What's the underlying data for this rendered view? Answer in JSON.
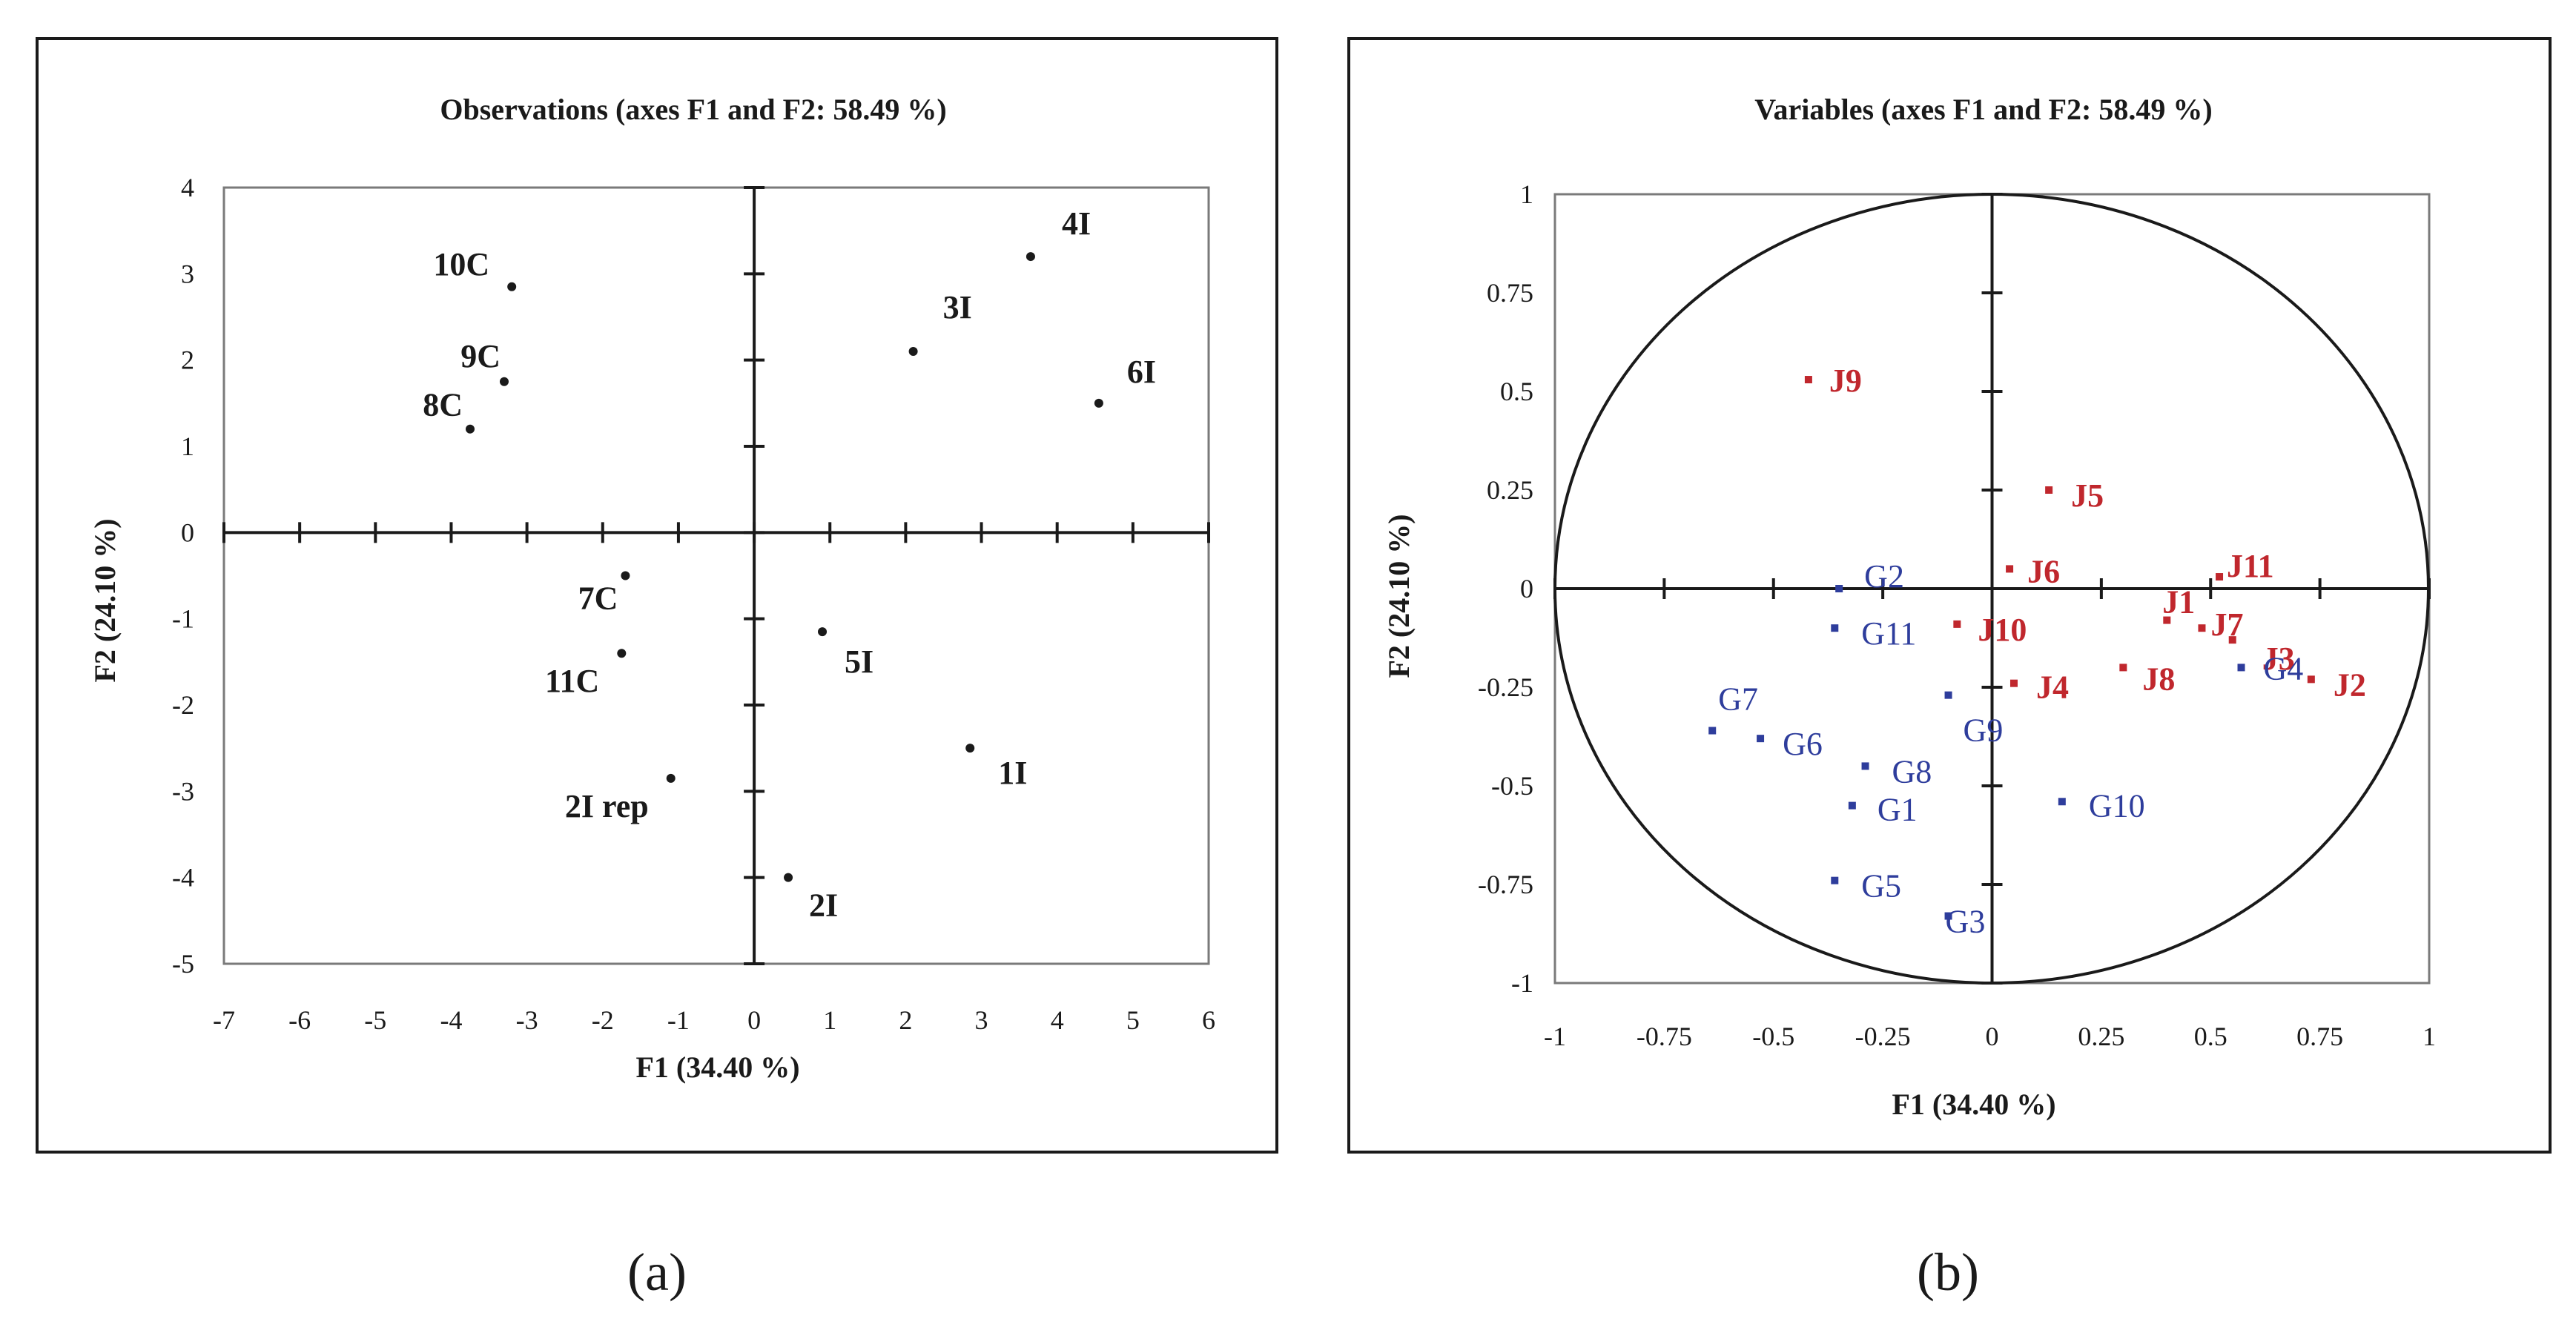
{
  "chart_data": [
    {
      "type": "scatter",
      "panel": "a",
      "title": "Observations (axes F1 and F2: 58.49 %)",
      "xlabel": "F1 (34.40 %)",
      "ylabel": "F2 (24.10 %)",
      "xlim": [
        -7,
        6
      ],
      "ylim": [
        -5,
        4
      ],
      "xticks": [
        "-7",
        "-6",
        "-5",
        "-4",
        "-3",
        "-2",
        "-1",
        "0",
        "1",
        "2",
        "3",
        "4",
        "5",
        "6"
      ],
      "yticks": [
        "4",
        "3",
        "2",
        "1",
        "0",
        "-1",
        "-2",
        "-3",
        "-4",
        "-5"
      ],
      "caption": "(a)",
      "points": [
        {
          "label": "10C",
          "x": -3.2,
          "y": 2.85
        },
        {
          "label": "9C",
          "x": -3.3,
          "y": 1.75
        },
        {
          "label": "8C",
          "x": -3.75,
          "y": 1.2
        },
        {
          "label": "4I",
          "x": 3.65,
          "y": 3.2
        },
        {
          "label": "3I",
          "x": 2.1,
          "y": 2.1
        },
        {
          "label": "6I",
          "x": 4.55,
          "y": 1.5
        },
        {
          "label": "7C",
          "x": -1.7,
          "y": -0.5
        },
        {
          "label": "11C",
          "x": -1.75,
          "y": -1.4
        },
        {
          "label": "5I",
          "x": 0.9,
          "y": -1.15
        },
        {
          "label": "1I",
          "x": 2.85,
          "y": -2.5
        },
        {
          "label": "2I rep",
          "x": -1.1,
          "y": -2.85
        },
        {
          "label": "2I",
          "x": 0.45,
          "y": -4.0
        }
      ]
    },
    {
      "type": "scatter",
      "panel": "b",
      "title": "Variables (axes F1 and F2: 58.49 %)",
      "xlabel": "F1 (34.40 %)",
      "ylabel": "F2 (24.10 %)",
      "xlim": [
        -1,
        1
      ],
      "ylim": [
        -1,
        1
      ],
      "xticks": [
        "-1",
        "-0.75",
        "-0.5",
        "-0.25",
        "0",
        "0.25",
        "0.5",
        "0.75",
        "1"
      ],
      "yticks": [
        "1",
        "0.75",
        "0.5",
        "0.25",
        "0",
        "-0.25",
        "-0.5",
        "-0.75",
        "-1"
      ],
      "caption": "(b)",
      "colors": {
        "J": "#c0272d",
        "G": "#2e3d9c"
      },
      "points": [
        {
          "label": "J9",
          "x": -0.42,
          "y": 0.53,
          "group": "J"
        },
        {
          "label": "J5",
          "x": 0.13,
          "y": 0.25,
          "group": "J"
        },
        {
          "label": "J6",
          "x": 0.04,
          "y": 0.05,
          "group": "J"
        },
        {
          "label": "J11",
          "x": 0.52,
          "y": 0.03,
          "group": "J"
        },
        {
          "label": "J1",
          "x": 0.4,
          "y": -0.08,
          "group": "J"
        },
        {
          "label": "J7",
          "x": 0.48,
          "y": -0.1,
          "group": "J"
        },
        {
          "label": "J3",
          "x": 0.55,
          "y": -0.13,
          "group": "J"
        },
        {
          "label": "J10",
          "x": -0.08,
          "y": -0.09,
          "group": "J"
        },
        {
          "label": "J8",
          "x": 0.3,
          "y": -0.2,
          "group": "J"
        },
        {
          "label": "J4",
          "x": 0.05,
          "y": -0.24,
          "group": "J"
        },
        {
          "label": "J2",
          "x": 0.73,
          "y": -0.23,
          "group": "J"
        },
        {
          "label": "G2",
          "x": -0.35,
          "y": 0.0,
          "group": "G"
        },
        {
          "label": "G11",
          "x": -0.36,
          "y": -0.1,
          "group": "G"
        },
        {
          "label": "G4",
          "x": 0.57,
          "y": -0.2,
          "group": "G"
        },
        {
          "label": "G9",
          "x": -0.1,
          "y": -0.27,
          "group": "G"
        },
        {
          "label": "G7",
          "x": -0.64,
          "y": -0.36,
          "group": "G"
        },
        {
          "label": "G6",
          "x": -0.53,
          "y": -0.38,
          "group": "G"
        },
        {
          "label": "G8",
          "x": -0.29,
          "y": -0.45,
          "group": "G"
        },
        {
          "label": "G1",
          "x": -0.32,
          "y": -0.55,
          "group": "G"
        },
        {
          "label": "G10",
          "x": 0.16,
          "y": -0.54,
          "group": "G"
        },
        {
          "label": "G5",
          "x": -0.36,
          "y": -0.74,
          "group": "G"
        },
        {
          "label": "G3",
          "x": -0.1,
          "y": -0.83,
          "group": "G"
        }
      ]
    }
  ]
}
